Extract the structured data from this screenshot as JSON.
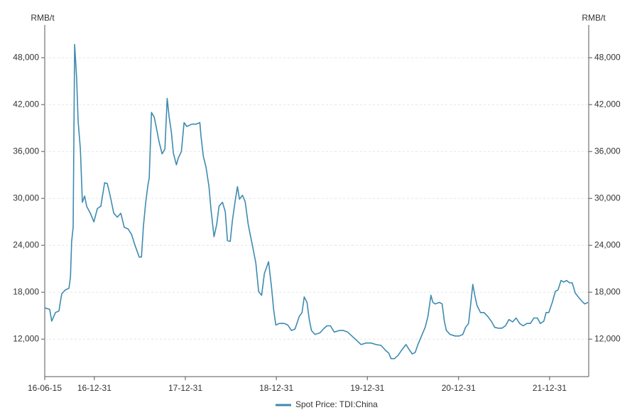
{
  "chart_data": {
    "type": "line",
    "y_label": "RMB/t",
    "y2_label": "RMB/t",
    "x": [
      "16-06-15",
      "16-07-05",
      "16-07-13",
      "16-07-28",
      "16-08-11",
      "16-08-22",
      "16-09-06",
      "16-09-20",
      "16-09-26",
      "16-10-01",
      "16-10-07",
      "16-10-13",
      "16-10-21",
      "16-10-27",
      "16-11-05",
      "16-11-13",
      "16-11-22",
      "16-11-30",
      "16-12-15",
      "16-12-29",
      "17-01-12",
      "17-01-26",
      "17-02-10",
      "17-02-21",
      "17-03-04",
      "17-03-19",
      "17-04-02",
      "17-04-16",
      "17-04-30",
      "17-05-15",
      "17-05-29",
      "17-06-12",
      "17-06-29",
      "17-07-08",
      "17-07-16",
      "17-07-25",
      "17-08-03",
      "17-08-08",
      "17-08-17",
      "17-08-28",
      "17-09-06",
      "17-09-17",
      "17-09-29",
      "17-10-10",
      "17-10-19",
      "17-10-27",
      "17-11-05",
      "17-11-13",
      "17-11-25",
      "17-12-03",
      "17-12-15",
      "17-12-26",
      "18-01-06",
      "18-01-26",
      "18-02-12",
      "18-02-27",
      "18-03-04",
      "18-03-13",
      "18-03-24",
      "18-04-05",
      "18-04-13",
      "18-04-25",
      "18-05-06",
      "18-05-15",
      "18-05-29",
      "18-06-09",
      "18-06-18",
      "18-06-29",
      "18-07-08",
      "18-07-19",
      "18-07-28",
      "18-08-05",
      "18-08-17",
      "18-08-28",
      "18-09-09",
      "18-09-17",
      "18-09-29",
      "18-10-10",
      "18-10-21",
      "18-11-02",
      "18-11-13",
      "18-11-30",
      "18-12-12",
      "18-12-20",
      "18-12-29",
      "19-01-12",
      "19-02-01",
      "19-02-15",
      "19-03-02",
      "19-03-16",
      "19-04-02",
      "19-04-13",
      "19-04-22",
      "19-05-03",
      "19-05-12",
      "19-05-21",
      "19-06-04",
      "19-06-24",
      "19-07-08",
      "19-07-22",
      "19-08-05",
      "19-08-20",
      "19-09-09",
      "19-09-26",
      "19-10-13",
      "19-10-30",
      "19-11-16",
      "19-12-06",
      "19-12-26",
      "20-01-15",
      "20-02-04",
      "20-02-24",
      "20-03-12",
      "20-03-26",
      "20-04-04",
      "20-04-18",
      "20-05-02",
      "20-05-17",
      "20-06-03",
      "20-06-17",
      "20-06-28",
      "20-07-10",
      "20-07-21",
      "20-08-07",
      "20-08-19",
      "20-08-30",
      "20-09-11",
      "20-09-19",
      "20-09-28",
      "20-10-15",
      "20-10-26",
      "20-11-04",
      "20-11-12",
      "20-11-27",
      "20-12-17",
      "21-01-03",
      "21-01-17",
      "21-01-28",
      "21-02-09",
      "21-02-17",
      "21-02-26",
      "21-03-06",
      "21-03-15",
      "21-03-29",
      "21-04-12",
      "21-04-27",
      "21-05-11",
      "21-05-25",
      "21-06-08",
      "21-06-23",
      "21-07-07",
      "21-07-21",
      "21-08-05",
      "21-08-19",
      "21-09-02",
      "21-09-16",
      "21-10-01",
      "21-10-15",
      "21-10-29",
      "21-11-12",
      "21-11-24",
      "21-12-08",
      "21-12-17",
      "21-12-28",
      "22-01-11",
      "22-01-23",
      "22-02-03",
      "22-02-15",
      "22-02-26",
      "22-03-09",
      "22-03-21",
      "22-04-01",
      "22-04-13",
      "22-04-30",
      "22-05-14",
      "22-05-22",
      "22-06-03"
    ],
    "series": [
      {
        "name": "Spot Price: TDI:China",
        "color": "#3d8bb0",
        "values": [
          16000,
          15800,
          14300,
          15400,
          15600,
          17800,
          18300,
          18500,
          19900,
          24500,
          26300,
          49700,
          45400,
          39900,
          36300,
          29500,
          30300,
          29000,
          28100,
          27000,
          28700,
          29000,
          32000,
          31900,
          30400,
          28100,
          27600,
          28100,
          26300,
          26100,
          25400,
          24000,
          22500,
          22500,
          26500,
          29500,
          31700,
          32600,
          41000,
          40400,
          39000,
          37200,
          35700,
          36300,
          42800,
          40400,
          38500,
          35800,
          34300,
          35200,
          36000,
          39700,
          39200,
          39500,
          39500,
          39700,
          37900,
          35400,
          34000,
          31500,
          28500,
          25100,
          26700,
          29000,
          29500,
          28300,
          24600,
          24500,
          27200,
          29700,
          31500,
          29900,
          30400,
          29600,
          26700,
          25400,
          23500,
          21700,
          18100,
          17600,
          20400,
          21900,
          18500,
          15800,
          13800,
          14000,
          14000,
          13800,
          13100,
          13300,
          14900,
          15400,
          17400,
          16700,
          14500,
          13100,
          12600,
          12800,
          13300,
          13700,
          13700,
          12900,
          13100,
          13100,
          12900,
          12400,
          11900,
          11300,
          11500,
          11500,
          11300,
          11200,
          10600,
          10200,
          9500,
          9500,
          9900,
          10600,
          11300,
          10600,
          10100,
          10300,
          11300,
          12600,
          13500,
          14900,
          17600,
          16700,
          16500,
          16700,
          16500,
          14300,
          13100,
          12600,
          12400,
          12400,
          12600,
          13500,
          14000,
          16300,
          19000,
          17600,
          16300,
          15400,
          15400,
          14900,
          14300,
          13500,
          13400,
          13400,
          13700,
          14500,
          14200,
          14700,
          14000,
          13700,
          14000,
          14000,
          14700,
          14700,
          14000,
          14300,
          15400,
          15400,
          16700,
          18100,
          18300,
          19500,
          19300,
          19500,
          19200,
          19200,
          17900,
          17200,
          16700,
          16500,
          16700
        ]
      }
    ],
    "xlim": [
      "16-06-15",
      "22-06-06"
    ],
    "xticks": [
      "16-06-15",
      "16-12-31",
      "17-12-31",
      "18-12-31",
      "19-12-31",
      "20-12-31",
      "21-12-31"
    ],
    "ylim": [
      7200,
      52200
    ],
    "yticks": [
      {
        "value": 12000,
        "label": "12,000"
      },
      {
        "value": 18000,
        "label": "18,000"
      },
      {
        "value": 24000,
        "label": "24,000"
      },
      {
        "value": 30000,
        "label": "30,000"
      },
      {
        "value": 36000,
        "label": "36,000"
      },
      {
        "value": 42000,
        "label": "42,000"
      },
      {
        "value": 48000,
        "label": "48,000"
      }
    ],
    "grid": true,
    "legend": "bottom"
  }
}
